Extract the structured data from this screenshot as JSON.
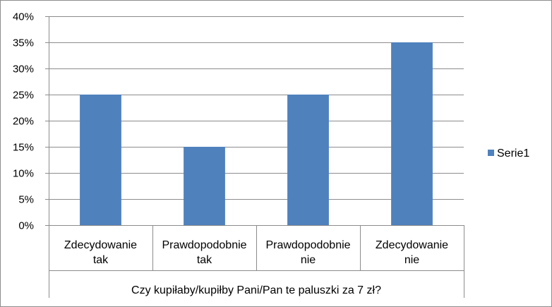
{
  "chart_data": {
    "type": "bar",
    "categories": [
      [
        "Zdecydowanie",
        "tak"
      ],
      [
        "Prawdopodobnie",
        "tak"
      ],
      [
        "Prawdopodobnie",
        "nie"
      ],
      [
        "Zdecydowanie",
        "nie"
      ]
    ],
    "series": [
      {
        "name": "Serie1",
        "values": [
          0.25,
          0.15,
          0.25,
          0.35
        ],
        "color": "#4f81bd"
      }
    ],
    "xlabel": "Czy kupiłaby/kupiłby Pani/Pan te paluszki za 7 zł?",
    "ylabel": "",
    "ylim": [
      0,
      0.4
    ],
    "yticks": [
      0,
      0.05,
      0.1,
      0.15,
      0.2,
      0.25,
      0.3,
      0.35,
      0.4
    ],
    "ytick_labels": [
      "0%",
      "5%",
      "10%",
      "15%",
      "20%",
      "25%",
      "30%",
      "35%",
      "40%"
    ],
    "grid": true,
    "legend": "right"
  }
}
